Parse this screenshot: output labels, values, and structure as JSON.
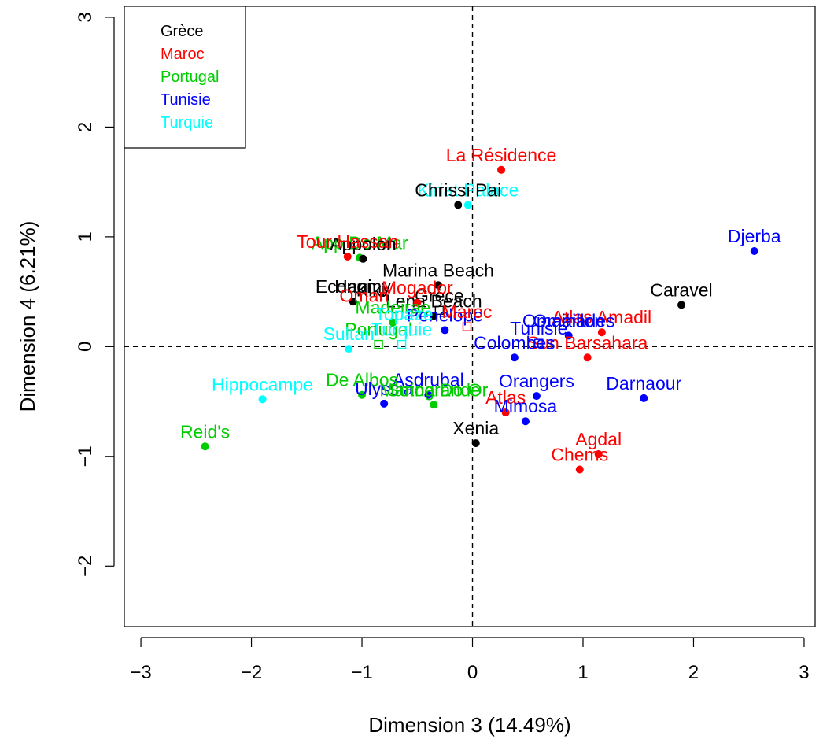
{
  "chart_data": {
    "type": "scatter",
    "xlabel": "Dimension 3 (14.49%)",
    "ylabel": "Dimension 4 (6.21%)",
    "xlim": [
      -3.15,
      3.1
    ],
    "ylim": [
      -2.55,
      3.1
    ],
    "x_ticks": [
      -3,
      -2,
      -1,
      0,
      1,
      2,
      3
    ],
    "y_ticks": [
      -2,
      -1,
      0,
      1,
      2,
      3
    ],
    "x_tick_labels": [
      "−3",
      "−2",
      "−1",
      "0",
      "1",
      "2",
      "3"
    ],
    "y_tick_labels": [
      "−2",
      "−1",
      "0",
      "1",
      "2",
      "3"
    ],
    "grid": false,
    "reference_lines": {
      "x": 0,
      "y": 0,
      "style": "dashed"
    },
    "legend": {
      "position": "top-left",
      "entries": [
        {
          "name": "Grèce",
          "color": "#000000"
        },
        {
          "name": "Maroc",
          "color": "#ff0000"
        },
        {
          "name": "Portugal",
          "color": "#00cd00"
        },
        {
          "name": "Tunisie",
          "color": "#0000ff"
        },
        {
          "name": "Turquie",
          "color": "#00ffff"
        }
      ]
    },
    "points": [
      {
        "label": "La Résidence",
        "group": "Maroc",
        "x": 0.26,
        "y": 1.61,
        "marker": "dot"
      },
      {
        "label": "Kiriat Palace",
        "group": "Turquie",
        "x": -0.04,
        "y": 1.29,
        "marker": "dot"
      },
      {
        "label": "Chrissi Pai",
        "group": "Grèce",
        "x": -0.13,
        "y": 1.29,
        "marker": "dot"
      },
      {
        "label": "Djerba",
        "group": "Tunisie",
        "x": 2.55,
        "y": 0.87,
        "marker": "dot"
      },
      {
        "label": "App Do Mar",
        "group": "Portugal",
        "x": -1.02,
        "y": 0.81,
        "marker": "dot"
      },
      {
        "label": "Appolon",
        "group": "Grèce",
        "x": -0.99,
        "y": 0.8,
        "marker": "dot"
      },
      {
        "label": "Tour Hassan",
        "group": "Maroc",
        "x": -1.13,
        "y": 0.82,
        "marker": "dot"
      },
      {
        "label": "Marina Beach",
        "group": "Grèce",
        "x": -0.31,
        "y": 0.56,
        "marker": "dot"
      },
      {
        "label": "Caravel",
        "group": "Grèce",
        "x": 1.89,
        "y": 0.38,
        "marker": "dot"
      },
      {
        "label": "Economy",
        "group": "Grèce",
        "x": -1.08,
        "y": 0.41,
        "marker": "dot"
      },
      {
        "label": "Grèce",
        "group": "Grèce",
        "x": -0.3,
        "y": 0.33,
        "marker": "square"
      },
      {
        "label": "Hani",
        "group": "Grèce",
        "x": -1.08,
        "y": 0.41,
        "marker": "none"
      },
      {
        "label": "Kiki",
        "group": "Grèce",
        "x": -0.92,
        "y": 0.38,
        "marker": "none"
      },
      {
        "label": "Lena Beach",
        "group": "Grèce",
        "x": -0.35,
        "y": 0.28,
        "marker": "dot"
      },
      {
        "label": "Mogador",
        "group": "Maroc",
        "x": -0.5,
        "y": 0.4,
        "marker": "dot"
      },
      {
        "label": "Oman",
        "group": "Maroc",
        "x": -0.98,
        "y": 0.33,
        "marker": "none"
      },
      {
        "label": "Penelope",
        "group": "Tunisie",
        "x": -0.25,
        "y": 0.15,
        "marker": "dot"
      },
      {
        "label": "Atlas Amadil",
        "group": "Maroc",
        "x": 1.17,
        "y": 0.13,
        "marker": "dot"
      },
      {
        "label": "Omaihades",
        "group": "Tunisie",
        "x": 0.87,
        "y": 0.1,
        "marker": "dot"
      },
      {
        "label": "Omaillon",
        "group": "Tunisie",
        "x": 0.87,
        "y": 0.1,
        "marker": "none"
      },
      {
        "label": "Madeirae",
        "group": "Portugal",
        "x": -0.72,
        "y": 0.22,
        "marker": "dot"
      },
      {
        "label": "Topaze",
        "group": "Turquie",
        "x": -0.62,
        "y": 0.16,
        "marker": "none"
      },
      {
        "label": "Maroc",
        "group": "Maroc",
        "x": -0.05,
        "y": 0.18,
        "marker": "square"
      },
      {
        "label": "Sun Barsahara",
        "group": "Maroc",
        "x": 1.04,
        "y": -0.1,
        "marker": "dot"
      },
      {
        "label": "Portugal",
        "group": "Portugal",
        "x": -0.85,
        "y": 0.02,
        "marker": "square"
      },
      {
        "label": "Turquie",
        "group": "Turquie",
        "x": -0.64,
        "y": 0.02,
        "marker": "square"
      },
      {
        "label": "Sultan",
        "group": "Turquie",
        "x": -1.12,
        "y": -0.02,
        "marker": "dot"
      },
      {
        "label": "Tunisie",
        "group": "Tunisie",
        "x": 0.6,
        "y": 0.03,
        "marker": "square"
      },
      {
        "label": "Asdrubal",
        "group": "Tunisie",
        "x": -0.4,
        "y": -0.44,
        "marker": "dot"
      },
      {
        "label": "Colombes",
        "group": "Tunisie",
        "x": 0.38,
        "y": -0.1,
        "marker": "dot"
      },
      {
        "label": "De Albos",
        "group": "Portugal",
        "x": -1.0,
        "y": -0.44,
        "marker": "dot"
      },
      {
        "label": "Orangers",
        "group": "Tunisie",
        "x": 0.58,
        "y": -0.45,
        "marker": "dot"
      },
      {
        "label": "Darnaour",
        "group": "Tunisie",
        "x": 1.55,
        "y": -0.47,
        "marker": "dot"
      },
      {
        "label": "Hippocampe",
        "group": "Turquie",
        "x": -1.9,
        "y": -0.48,
        "marker": "dot"
      },
      {
        "label": "Ulyssia",
        "group": "Tunisie",
        "x": -0.8,
        "y": -0.52,
        "marker": "dot"
      },
      {
        "label": "Marina Do Or",
        "group": "Portugal",
        "x": -0.35,
        "y": -0.53,
        "marker": "dot"
      },
      {
        "label": "Sotogrande",
        "group": "Portugal",
        "x": -0.35,
        "y": -0.53,
        "marker": "none"
      },
      {
        "label": "Atlas",
        "group": "Maroc",
        "x": 0.3,
        "y": -0.6,
        "marker": "dot"
      },
      {
        "label": "Mimosa",
        "group": "Tunisie",
        "x": 0.48,
        "y": -0.68,
        "marker": "dot"
      },
      {
        "label": "Xenia",
        "group": "Grèce",
        "x": 0.03,
        "y": -0.88,
        "marker": "dot"
      },
      {
        "label": "Reid's",
        "group": "Portugal",
        "x": -2.42,
        "y": -0.91,
        "marker": "dot"
      },
      {
        "label": "Agdal",
        "group": "Maroc",
        "x": 1.14,
        "y": -0.98,
        "marker": "dot"
      },
      {
        "label": "Chems",
        "group": "Maroc",
        "x": 0.97,
        "y": -1.12,
        "marker": "dot"
      }
    ]
  }
}
